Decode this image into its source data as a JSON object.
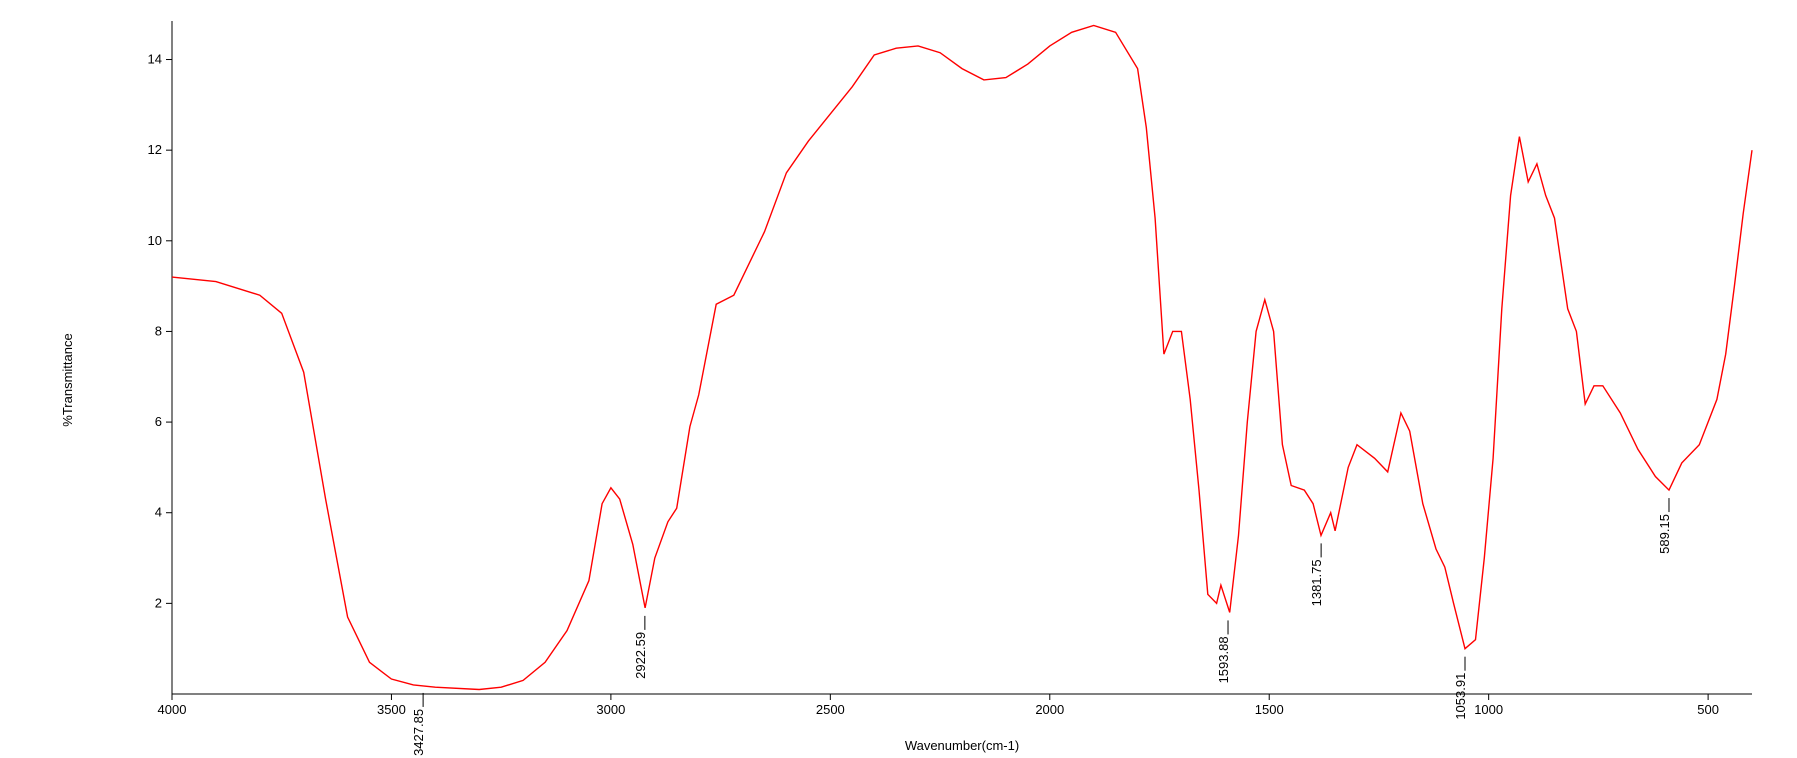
{
  "chart_data": {
    "type": "line",
    "x_label": "Wavenumber(cm-1)",
    "y_label": "%Transmittance",
    "xlim": [
      4000,
      400
    ],
    "ylim": [
      0,
      14.85
    ],
    "xticks": [
      4000,
      3500,
      3000,
      2500,
      2000,
      1500,
      1000,
      500
    ],
    "yticks": [
      2,
      4,
      6,
      8,
      10,
      12,
      14
    ],
    "series": [
      {
        "color": "#ff0000",
        "x": [
          4000,
          3900,
          3800,
          3750,
          3700,
          3650,
          3600,
          3550,
          3500,
          3450,
          3400,
          3300,
          3250,
          3200,
          3150,
          3100,
          3050,
          3020,
          3000,
          2980,
          2950,
          2922,
          2900,
          2870,
          2850,
          2820,
          2800,
          2760,
          2720,
          2650,
          2600,
          2550,
          2500,
          2450,
          2400,
          2350,
          2300,
          2250,
          2200,
          2150,
          2100,
          2050,
          2000,
          1950,
          1900,
          1850,
          1800,
          1780,
          1760,
          1740,
          1720,
          1700,
          1680,
          1660,
          1640,
          1620,
          1610,
          1590,
          1570,
          1550,
          1530,
          1510,
          1490,
          1470,
          1450,
          1420,
          1400,
          1382,
          1360,
          1350,
          1320,
          1300,
          1260,
          1230,
          1200,
          1180,
          1150,
          1120,
          1100,
          1080,
          1054,
          1030,
          1010,
          990,
          970,
          950,
          930,
          910,
          890,
          870,
          850,
          820,
          800,
          780,
          760,
          740,
          700,
          660,
          620,
          589,
          560,
          520,
          480,
          460,
          440,
          420,
          400
        ],
        "values": [
          9.2,
          9.1,
          8.8,
          8.4,
          7.1,
          4.3,
          1.7,
          0.7,
          0.33,
          0.2,
          0.15,
          0.1,
          0.15,
          0.3,
          0.7,
          1.4,
          2.5,
          4.2,
          4.55,
          4.3,
          3.3,
          1.9,
          3.0,
          3.8,
          4.1,
          5.9,
          6.6,
          8.6,
          8.8,
          10.2,
          11.5,
          12.2,
          12.8,
          13.4,
          14.1,
          14.25,
          14.3,
          14.15,
          13.8,
          13.55,
          13.6,
          13.9,
          14.3,
          14.6,
          14.75,
          14.6,
          13.8,
          12.5,
          10.5,
          7.5,
          8.0,
          8.0,
          6.5,
          4.5,
          2.2,
          2.0,
          2.4,
          1.8,
          3.5,
          6.0,
          8.0,
          8.7,
          8.0,
          5.5,
          4.6,
          4.5,
          4.2,
          3.5,
          4.0,
          3.6,
          5.0,
          5.5,
          5.2,
          4.9,
          6.2,
          5.8,
          4.2,
          3.2,
          2.8,
          2.0,
          1.0,
          1.2,
          3.0,
          5.2,
          8.5,
          11.0,
          12.3,
          11.3,
          11.7,
          11.0,
          10.5,
          8.5,
          8.0,
          6.4,
          6.8,
          6.8,
          6.2,
          5.4,
          4.8,
          4.5,
          5.1,
          5.5,
          6.5,
          7.5,
          9.0,
          10.6,
          12.0
        ]
      }
    ],
    "peaks": {
      "x": [
        3427.85,
        2922.59,
        1593.88,
        1381.75,
        1053.91,
        589.15
      ],
      "y": [
        0.2,
        1.9,
        1.8,
        3.5,
        1.0,
        4.5
      ]
    }
  }
}
